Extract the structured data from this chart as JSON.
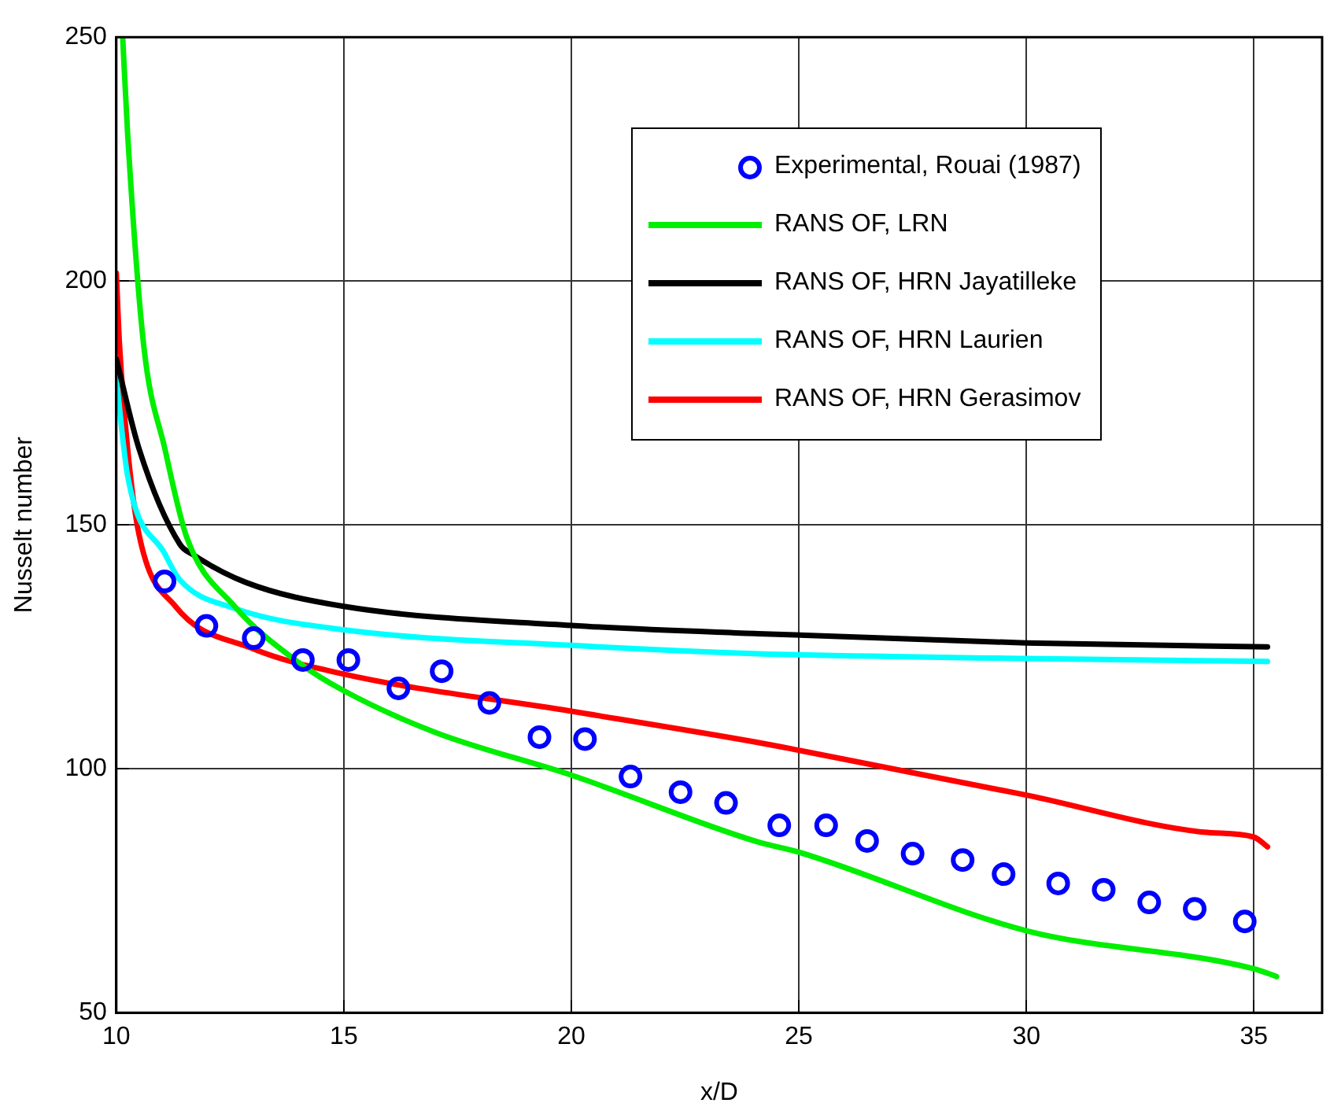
{
  "chart_data": {
    "type": "line",
    "xlabel": "x/D",
    "ylabel": "Nusselt number",
    "xlim": [
      10,
      36.5
    ],
    "xticks": [
      10,
      15,
      20,
      25,
      30,
      35
    ],
    "ylim": [
      50,
      250
    ],
    "yticks": [
      50,
      100,
      150,
      200,
      250
    ],
    "grid": true,
    "legend": "top right",
    "marker": "none",
    "line_style": "solid",
    "series": [
      {
        "name": "Experimental, Rouai (1987)",
        "type": "scatter",
        "marker": "circle",
        "color": "#0000ff",
        "x": [
          11.06,
          11.98,
          13.02,
          14.1,
          15.1,
          16.2,
          17.15,
          18.2,
          19.3,
          20.3,
          21.3,
          22.4,
          23.4,
          24.57,
          25.6,
          26.5,
          27.5,
          28.6,
          29.5,
          30.7,
          31.7,
          32.7,
          33.7,
          34.8
        ],
        "values": [
          138.4,
          129.3,
          126.8,
          122.3,
          122.3,
          116.5,
          120.0,
          113.5,
          106.5,
          106.1,
          98.4,
          95.2,
          93.0,
          88.4,
          88.4,
          85.2,
          82.6,
          81.3,
          78.4,
          76.5,
          75.2,
          72.6,
          71.3,
          68.7
        ]
      },
      {
        "name": "RANS OF, LRN",
        "color": "#00ee00",
        "x": [
          10.14,
          10.25,
          10.6,
          11.07,
          11.55,
          12.6,
          14.05,
          15,
          17,
          20,
          24.1,
          25,
          30,
          35,
          35.5
        ],
        "values": [
          250,
          230,
          187,
          165.5,
          147.4,
          133.3,
          121.5,
          116,
          107.5,
          98.7,
          85,
          82.9,
          66.8,
          59,
          57.4
        ]
      },
      {
        "name": "RANS OF, HRN Jayatilleke",
        "color": "#000000",
        "x": [
          10,
          10.5,
          11.4,
          11.67,
          12.85,
          15,
          20,
          24.1,
          30,
          35.3
        ],
        "values": [
          184,
          165.6,
          146,
          144,
          138.2,
          133.3,
          129.4,
          127.7,
          125.8,
          125
        ]
      },
      {
        "name": "RANS OF, HRN Laurien",
        "color": "#00ffff",
        "x": [
          10,
          10.25,
          11.07,
          11.4,
          12.6,
          15,
          20,
          24.1,
          30,
          35.3
        ],
        "values": [
          180,
          160,
          144,
          138.7,
          132.9,
          128.5,
          125.3,
          123.6,
          122.6,
          122
        ]
      },
      {
        "name": "RANS OF, HRN Gerasimov",
        "color": "#ff0000",
        "x": [
          10,
          10.07,
          10.25,
          10.5,
          11.3,
          12.98,
          15,
          20,
          24.1,
          25,
          30,
          33.9,
          35,
          35.3
        ],
        "values": [
          201.6,
          187,
          165.5,
          148,
          133.3,
          124.7,
          119.4,
          111.8,
          105.4,
          103.8,
          94.6,
          87,
          86,
          84
        ]
      }
    ]
  }
}
